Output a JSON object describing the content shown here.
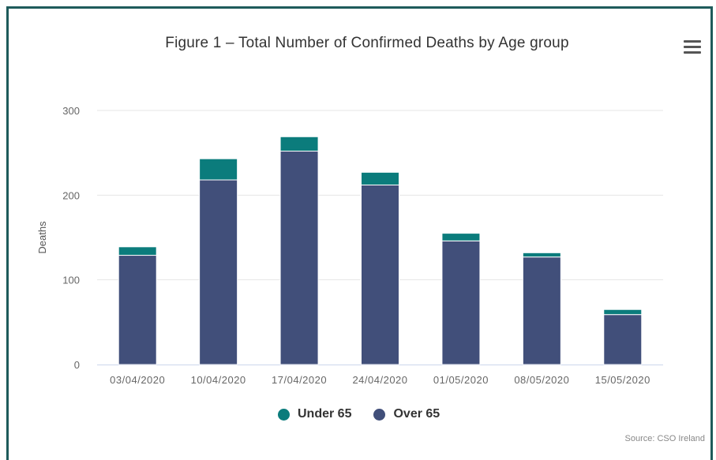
{
  "chart_data": {
    "type": "bar",
    "stacked": true,
    "title": "Figure 1 – Total Number of Confirmed Deaths by Age group",
    "xlabel": "",
    "ylabel": "Deaths",
    "categories": [
      "03/04/2020",
      "10/04/2020",
      "17/04/2020",
      "24/04/2020",
      "01/05/2020",
      "08/05/2020",
      "15/05/2020"
    ],
    "series": [
      {
        "name": "Over 65",
        "color": "#414f7a",
        "values": [
          129,
          218,
          252,
          212,
          146,
          127,
          59
        ]
      },
      {
        "name": "Under 65",
        "color": "#0b7c7c",
        "values": [
          10,
          25,
          17,
          15,
          9,
          5,
          6
        ]
      }
    ],
    "yticks": [
      0,
      100,
      200,
      300
    ],
    "ylim": [
      0,
      300
    ],
    "grid": true,
    "legend_position": "bottom",
    "legend_order": [
      "Under 65",
      "Over 65"
    ],
    "source": "Source: CSO Ireland"
  },
  "menu_icon": "hamburger-menu-icon"
}
